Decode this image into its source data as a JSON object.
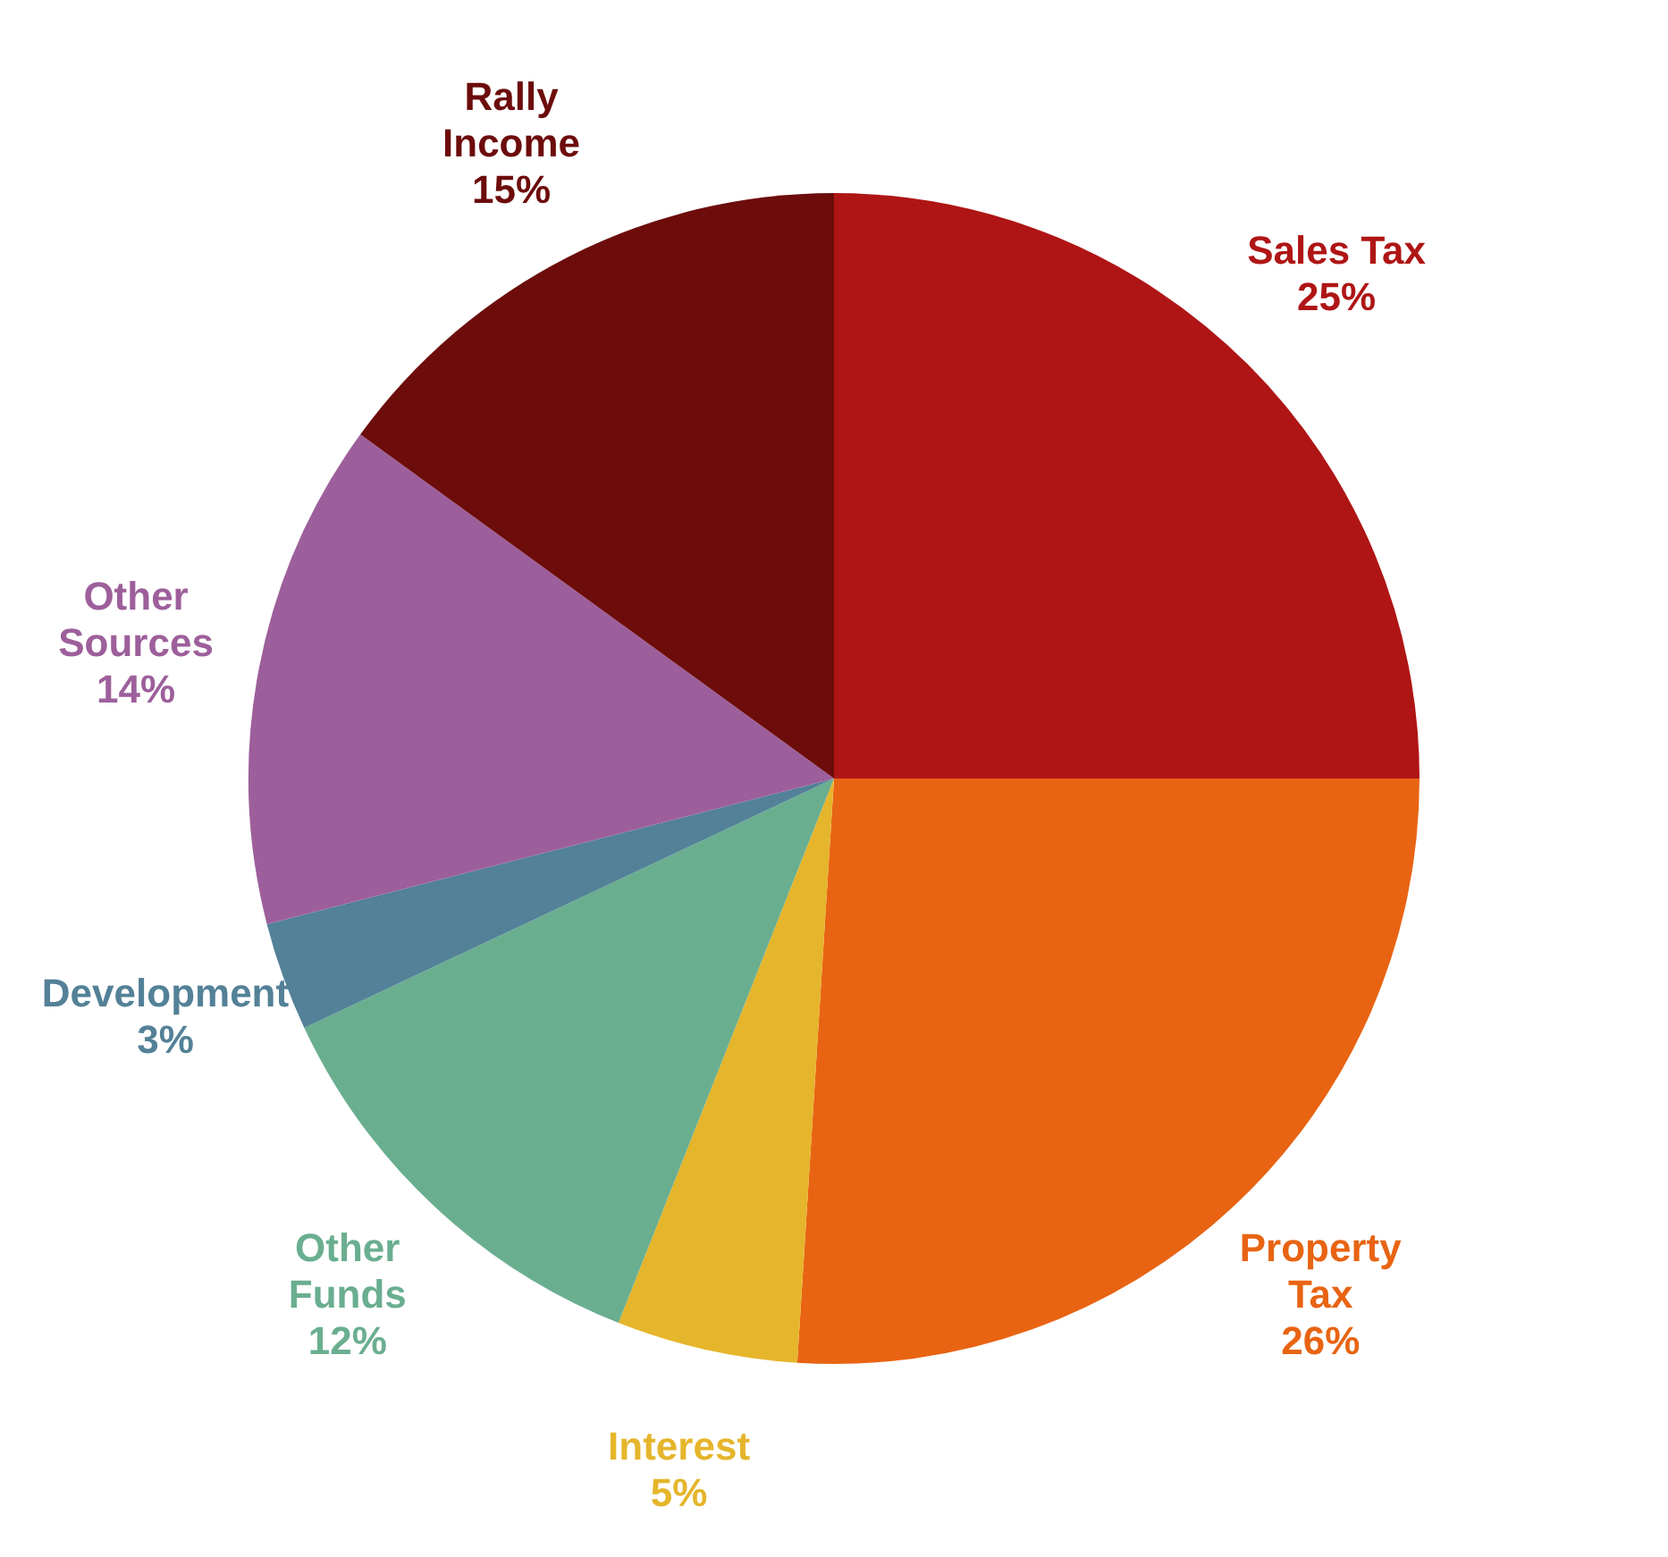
{
  "chart_data": {
    "type": "pie",
    "categories": [
      "Sales Tax",
      "Property Tax",
      "Interest",
      "Other Funds",
      "Development",
      "Other Sources",
      "Rally Income"
    ],
    "values": [
      25,
      26,
      5,
      12,
      3,
      14,
      15
    ],
    "value_labels": [
      "25%",
      "26%",
      "5%",
      "12%",
      "3%",
      "14%",
      "15%"
    ],
    "colors": [
      "#af1515",
      "#e86413",
      "#e5b52b",
      "#6aae90",
      "#538197",
      "#9d5f9b",
      "#6c0c0b"
    ],
    "legend": false
  }
}
